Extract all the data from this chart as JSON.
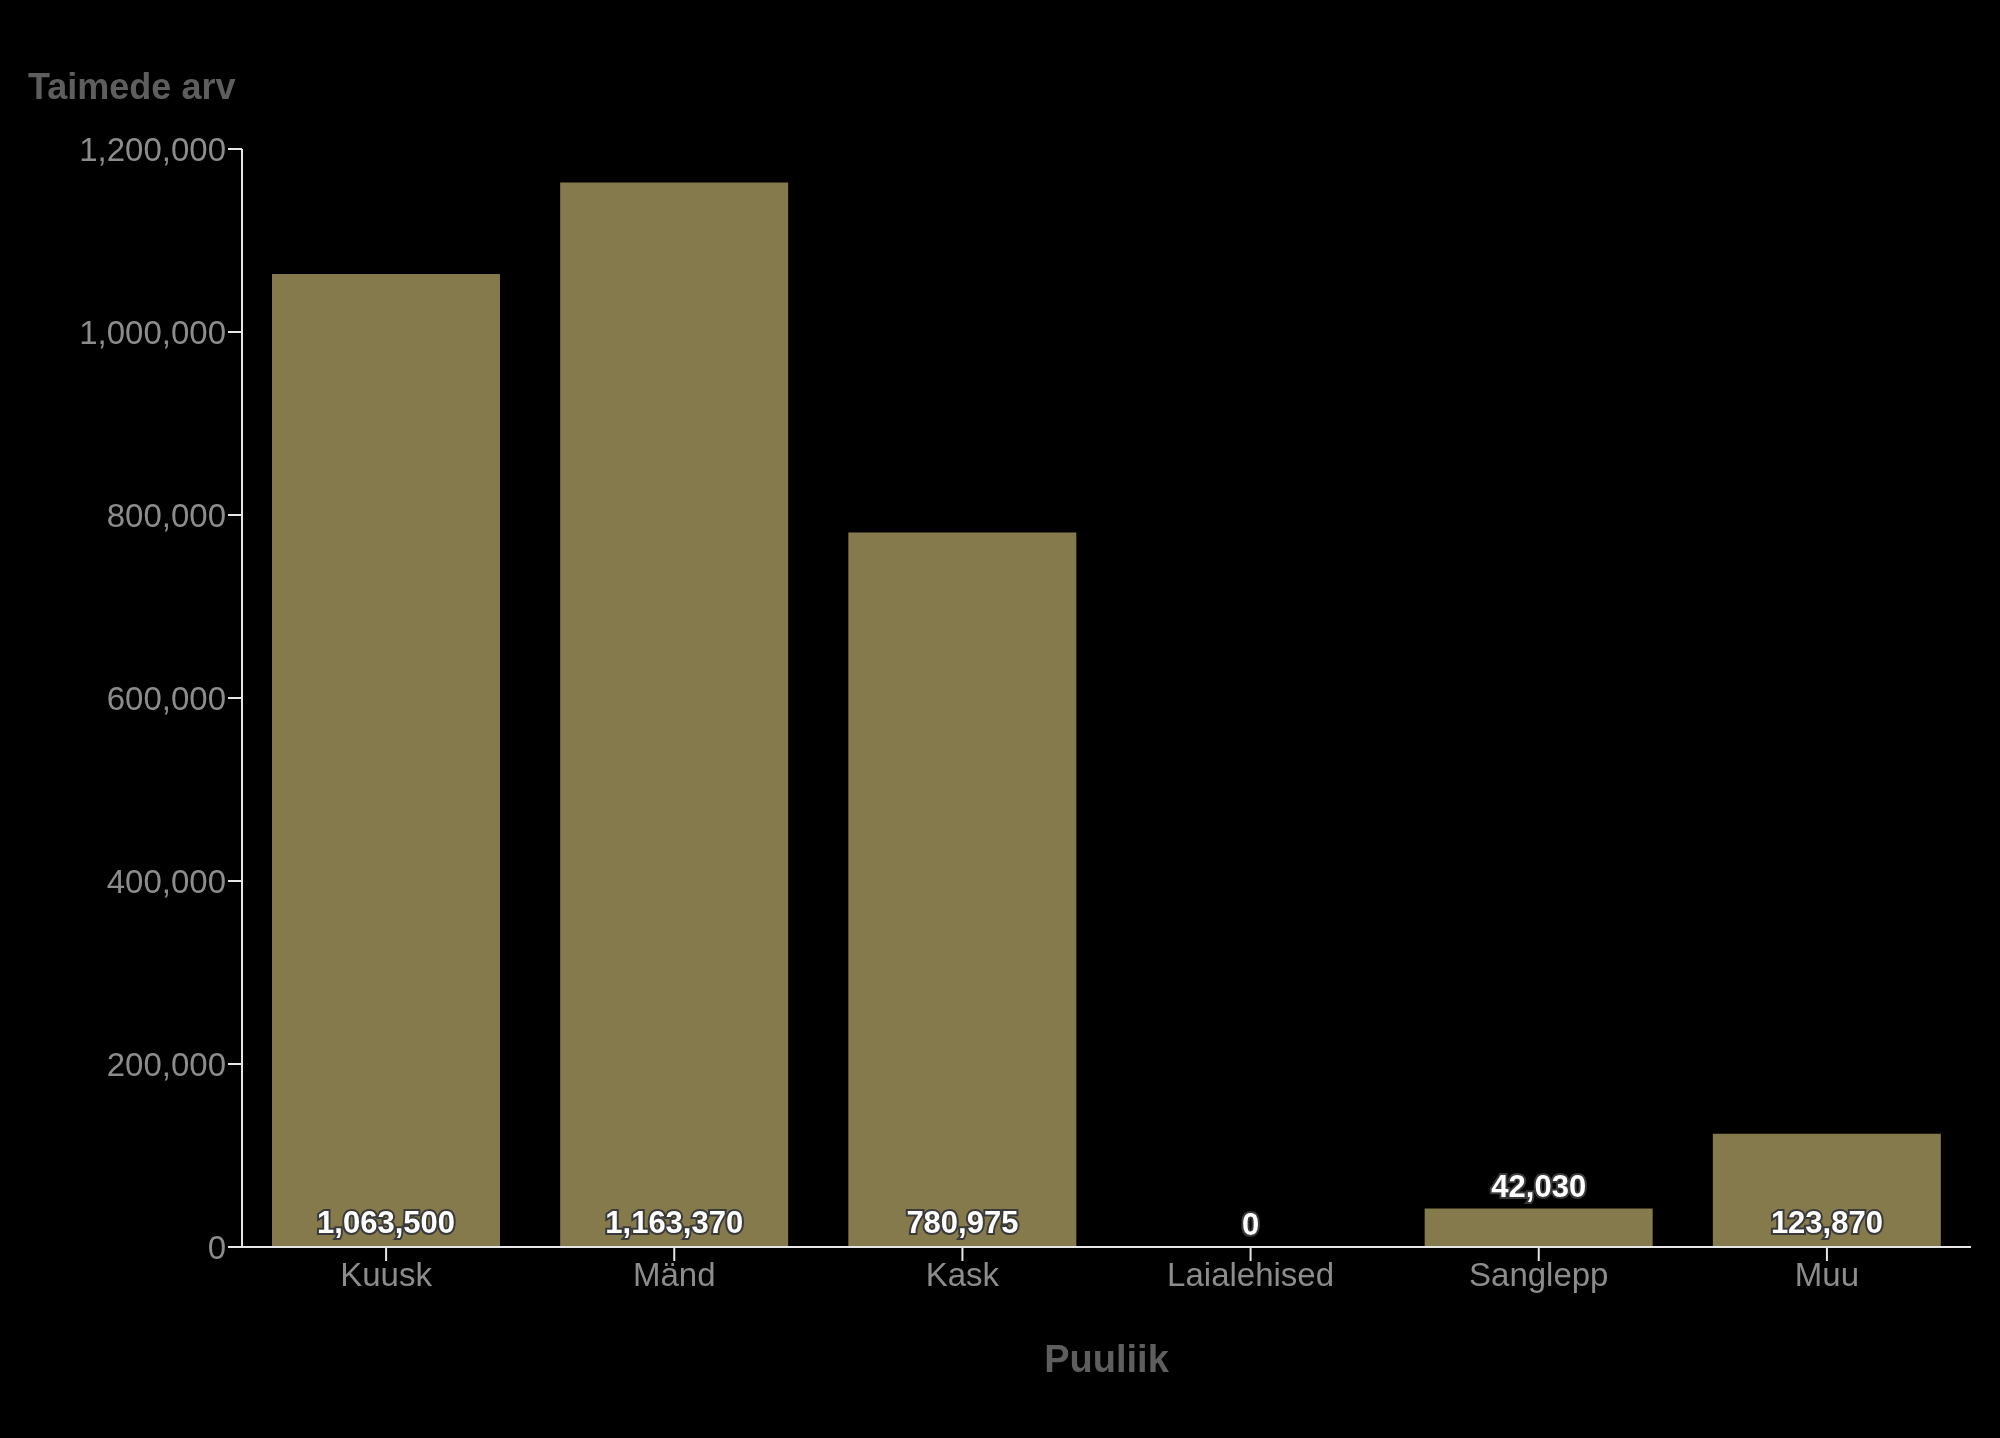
{
  "chart_data": {
    "type": "bar",
    "xlabel": "Puuliik",
    "ylabel": "Taimede arv",
    "categories": [
      "Kuusk",
      "Mänd",
      "Kask",
      "Laialehised",
      "Sanglepp",
      "Muu"
    ],
    "values": [
      1063500,
      1163370,
      780975,
      0,
      42030,
      123870
    ],
    "value_labels": [
      "1,063,500",
      "1,163,370",
      "780,975",
      "0",
      "42,030",
      "123,870"
    ],
    "color": "#857a4b",
    "ylim": [
      0,
      1200000
    ],
    "yticks": [
      {
        "value": 0,
        "label": "0"
      },
      {
        "value": 200000,
        "label": "200,000"
      },
      {
        "value": 400000,
        "label": "400,000"
      },
      {
        "value": 600000,
        "label": "600,000"
      },
      {
        "value": 800000,
        "label": "800,000"
      },
      {
        "value": 1000000,
        "label": "1,000,000"
      },
      {
        "value": 1200000,
        "label": "1,200,000"
      }
    ]
  }
}
